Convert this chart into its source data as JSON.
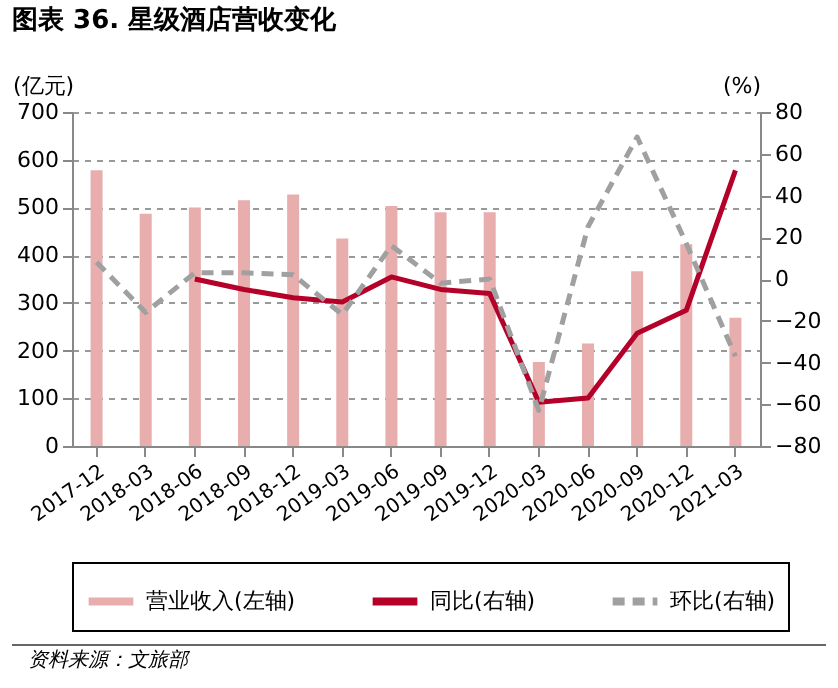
{
  "chart_data": {
    "type": "bar",
    "title": "图表 36. 星级酒店营收变化",
    "ylabel": "(亿元)",
    "y2label": "(%)",
    "categories": [
      "2017-12",
      "2018-03",
      "2018-06",
      "2018-09",
      "2018-12",
      "2019-03",
      "2019-06",
      "2019-09",
      "2019-12",
      "2020-03",
      "2020-06",
      "2020-09",
      "2020-12",
      "2021-03"
    ],
    "series": [
      {
        "name": "营业收入(左轴)",
        "type": "bar",
        "color": "#e8aeae",
        "values": [
          578,
          487,
          500,
          515,
          527,
          435,
          503,
          490,
          490,
          176,
          215,
          366,
          423,
          269
        ]
      },
      {
        "name": "同比(右轴)",
        "type": "line",
        "axis": "y2",
        "color": "#b5002a",
        "line_style": "solid",
        "values": [
          null,
          null,
          0,
          -5,
          -9,
          -11,
          1,
          -5,
          -7,
          -59,
          -57,
          -26,
          -15,
          52
        ]
      },
      {
        "name": "环比(右轴)",
        "type": "line",
        "axis": "y2",
        "color": "#a0a0a0",
        "line_style": "dashed",
        "values": [
          8,
          -16,
          3,
          3,
          2,
          -17,
          16,
          -2,
          0,
          -63,
          25,
          68,
          17,
          -37
        ]
      }
    ],
    "ylim": [
      0,
      700
    ],
    "yticks": [
      0,
      100,
      200,
      300,
      400,
      500,
      600,
      700
    ],
    "y2lim": [
      -80,
      80
    ],
    "y2ticks": [
      -80,
      -60,
      -40,
      -20,
      0,
      20,
      40,
      60,
      80
    ],
    "grid": "y",
    "legend": "bottom",
    "marker": "none",
    "annotations": [
      "资料来源：文旅部"
    ]
  }
}
